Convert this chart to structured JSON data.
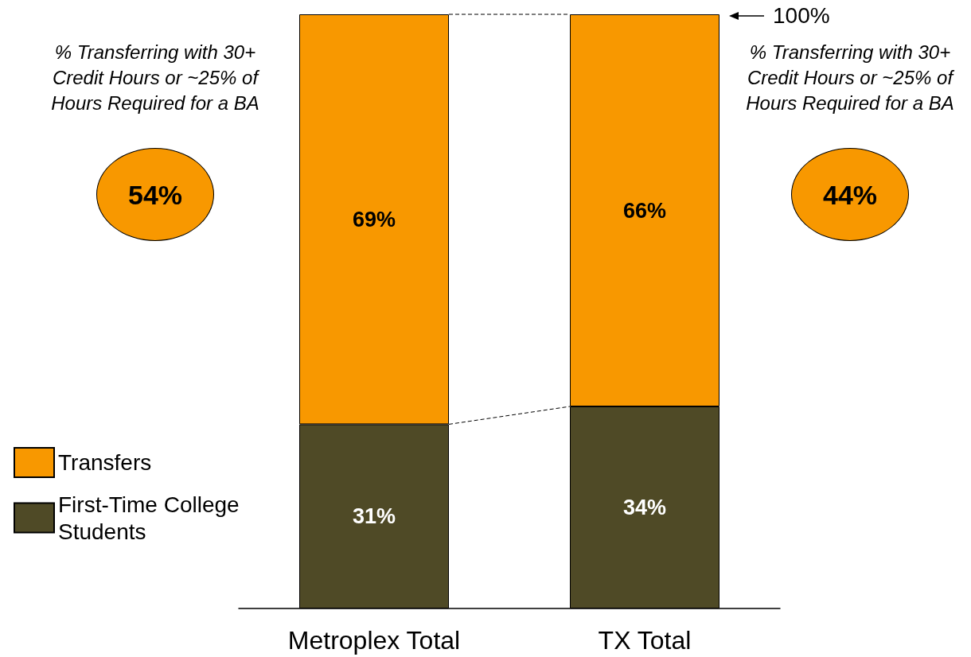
{
  "chart_data": {
    "type": "bar",
    "categories": [
      "Metroplex Total",
      "TX Total"
    ],
    "stacked": true,
    "series": [
      {
        "name": "First-Time College Students",
        "color": "#4f4a26",
        "values": [
          31,
          34
        ],
        "value_labels": [
          "31%",
          "34%"
        ]
      },
      {
        "name": "Transfers",
        "color": "#f89800",
        "values": [
          69,
          66
        ],
        "value_labels": [
          "69%",
          "66%"
        ]
      }
    ],
    "legend": "bottom left",
    "tick_labels": "x",
    "annotations": [
      "% Transferring with 30+ Credit Hours or ~25% of Hours Required for a BA",
      "54%",
      "% Transferring with 30+ Credit Hours or ~25% of Hours Required for a BA",
      "44%",
      "100%"
    ]
  }
}
